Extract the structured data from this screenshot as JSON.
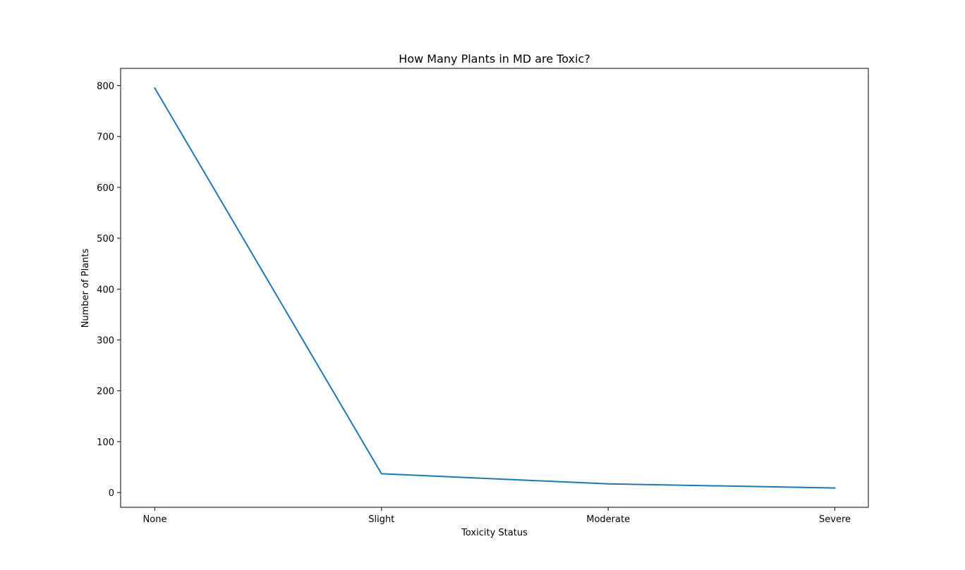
{
  "chart_data": {
    "type": "line",
    "title": "How Many Plants in MD are Toxic?",
    "xlabel": "Toxicity Status",
    "ylabel": "Number of Plants",
    "categories": [
      "None",
      "Slight",
      "Moderate",
      "Severe"
    ],
    "series": [
      {
        "values": [
          795,
          37,
          17,
          9
        ],
        "color": "#1f77b4"
      }
    ],
    "ylim": [
      -29,
      834
    ],
    "yticks": [
      0,
      100,
      200,
      300,
      400,
      500,
      600,
      700,
      800
    ],
    "grid": false,
    "legend": "none"
  }
}
